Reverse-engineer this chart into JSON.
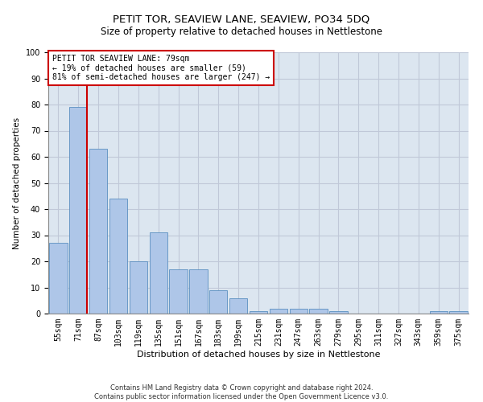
{
  "title": "PETIT TOR, SEAVIEW LANE, SEAVIEW, PO34 5DQ",
  "subtitle": "Size of property relative to detached houses in Nettlestone",
  "xlabel": "Distribution of detached houses by size in Nettlestone",
  "ylabel": "Number of detached properties",
  "categories": [
    "55sqm",
    "71sqm",
    "87sqm",
    "103sqm",
    "119sqm",
    "135sqm",
    "151sqm",
    "167sqm",
    "183sqm",
    "199sqm",
    "215sqm",
    "231sqm",
    "247sqm",
    "263sqm",
    "279sqm",
    "295sqm",
    "311sqm",
    "327sqm",
    "343sqm",
    "359sqm",
    "375sqm"
  ],
  "values": [
    27,
    79,
    63,
    44,
    20,
    31,
    17,
    17,
    9,
    6,
    1,
    2,
    2,
    2,
    1,
    0,
    0,
    0,
    0,
    1,
    1
  ],
  "bar_color": "#aec6e8",
  "bar_edge_color": "#5a8fc0",
  "grid_color": "#c0c8d8",
  "background_color": "#dce6f0",
  "property_label": "PETIT TOR SEAVIEW LANE: 79sqm",
  "annotation_line1": "← 19% of detached houses are smaller (59)",
  "annotation_line2": "81% of semi-detached houses are larger (247) →",
  "annotation_box_color": "#ffffff",
  "annotation_box_edge": "#cc0000",
  "vline_color": "#cc0000",
  "footer1": "Contains HM Land Registry data © Crown copyright and database right 2024.",
  "footer2": "Contains public sector information licensed under the Open Government Licence v3.0.",
  "ylim": [
    0,
    100
  ],
  "yticks": [
    0,
    10,
    20,
    30,
    40,
    50,
    60,
    70,
    80,
    90,
    100
  ],
  "title_fontsize": 9.5,
  "subtitle_fontsize": 8.5,
  "tick_fontsize": 7,
  "ylabel_fontsize": 7.5,
  "xlabel_fontsize": 8,
  "footer_fontsize": 6,
  "annotation_fontsize": 7
}
